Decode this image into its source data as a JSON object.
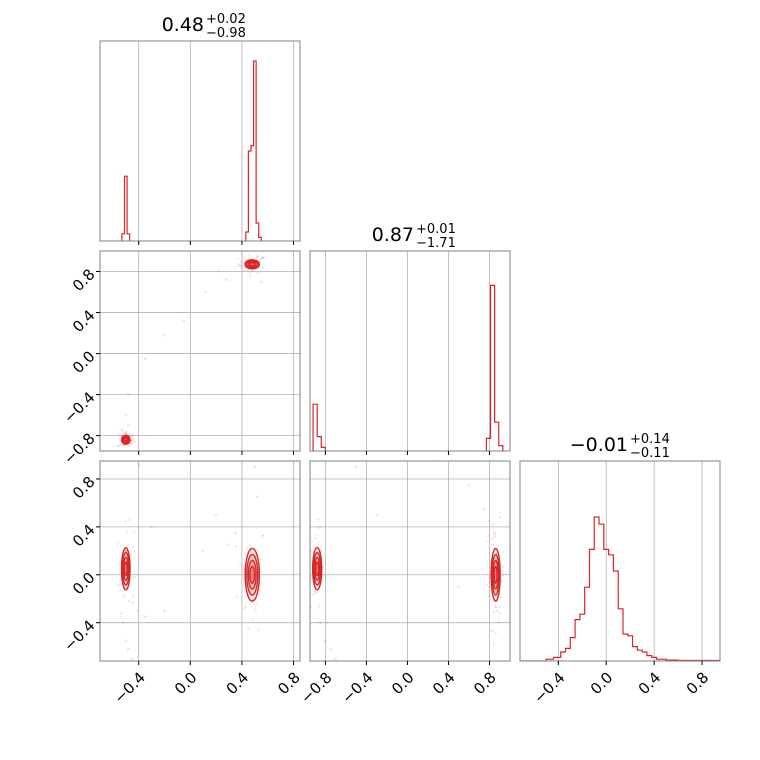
{
  "chart_data": {
    "type": "corner",
    "color": "#d62728",
    "grid": true,
    "parameters": [
      {
        "title_value": "0.48",
        "err_plus": "+0.02",
        "err_minus": "−0.98"
      },
      {
        "title_value": "0.87",
        "err_plus": "+0.01",
        "err_minus": "−1.71"
      },
      {
        "title_value": "−0.01",
        "err_plus": "+0.14",
        "err_minus": "−0.11"
      }
    ],
    "axes": [
      {
        "range": [
          -0.7,
          0.85
        ],
        "ticks": [
          -0.4,
          0.0,
          0.4,
          0.8
        ],
        "tick_labels": [
          "−0.4",
          "0.0",
          "0.4",
          "0.8"
        ]
      },
      {
        "range": [
          -0.95,
          1.0
        ],
        "ticks": [
          -0.8,
          -0.4,
          0.0,
          0.4,
          0.8
        ],
        "tick_labels": [
          "−0.8",
          "−0.4",
          "0.0",
          "0.4",
          "0.8"
        ]
      },
      {
        "range": [
          -0.72,
          0.95
        ],
        "ticks": [
          -0.4,
          0.0,
          0.4,
          0.8
        ],
        "tick_labels": [
          "−0.4",
          "0.0",
          "0.4",
          "0.8"
        ]
      }
    ],
    "histograms": [
      {
        "param": 0,
        "bins": [
          {
            "x0": -0.53,
            "x1": -0.51,
            "h": 0.04
          },
          {
            "x0": -0.51,
            "x1": -0.49,
            "h": 0.36
          },
          {
            "x0": -0.49,
            "x1": -0.47,
            "h": 0.04
          },
          {
            "x0": 0.43,
            "x1": 0.45,
            "h": 0.05
          },
          {
            "x0": 0.45,
            "x1": 0.47,
            "h": 0.5
          },
          {
            "x0": 0.47,
            "x1": 0.49,
            "h": 0.53
          },
          {
            "x0": 0.49,
            "x1": 0.51,
            "h": 1.0
          },
          {
            "x0": 0.51,
            "x1": 0.53,
            "h": 0.1
          },
          {
            "x0": 0.53,
            "x1": 0.55,
            "h": 0.02
          }
        ]
      },
      {
        "param": 1,
        "bins": [
          {
            "x0": -0.92,
            "x1": -0.88,
            "h": 0.26
          },
          {
            "x0": -0.88,
            "x1": -0.84,
            "h": 0.08
          },
          {
            "x0": -0.84,
            "x1": -0.8,
            "h": 0.02
          },
          {
            "x0": 0.77,
            "x1": 0.81,
            "h": 0.07
          },
          {
            "x0": 0.81,
            "x1": 0.85,
            "h": 0.92
          },
          {
            "x0": 0.85,
            "x1": 0.89,
            "h": 0.16
          },
          {
            "x0": 0.89,
            "x1": 0.93,
            "h": 0.03
          }
        ]
      },
      {
        "param": 2,
        "bins": [
          {
            "x0": -0.72,
            "x1": -0.5,
            "h": 0.0
          },
          {
            "x0": -0.5,
            "x1": -0.44,
            "h": 0.01
          },
          {
            "x0": -0.44,
            "x1": -0.38,
            "h": 0.02
          },
          {
            "x0": -0.38,
            "x1": -0.34,
            "h": 0.05
          },
          {
            "x0": -0.34,
            "x1": -0.3,
            "h": 0.07
          },
          {
            "x0": -0.3,
            "x1": -0.26,
            "h": 0.13
          },
          {
            "x0": -0.26,
            "x1": -0.22,
            "h": 0.23
          },
          {
            "x0": -0.22,
            "x1": -0.18,
            "h": 0.26
          },
          {
            "x0": -0.18,
            "x1": -0.14,
            "h": 0.41
          },
          {
            "x0": -0.14,
            "x1": -0.1,
            "h": 0.62
          },
          {
            "x0": -0.1,
            "x1": -0.06,
            "h": 0.8
          },
          {
            "x0": -0.06,
            "x1": -0.02,
            "h": 0.76
          },
          {
            "x0": -0.02,
            "x1": 0.02,
            "h": 0.62
          },
          {
            "x0": 0.02,
            "x1": 0.06,
            "h": 0.59
          },
          {
            "x0": 0.06,
            "x1": 0.1,
            "h": 0.5
          },
          {
            "x0": 0.1,
            "x1": 0.14,
            "h": 0.29
          },
          {
            "x0": 0.14,
            "x1": 0.18,
            "h": 0.15
          },
          {
            "x0": 0.18,
            "x1": 0.22,
            "h": 0.14
          },
          {
            "x0": 0.22,
            "x1": 0.26,
            "h": 0.08
          },
          {
            "x0": 0.26,
            "x1": 0.3,
            "h": 0.06
          },
          {
            "x0": 0.3,
            "x1": 0.34,
            "h": 0.05
          },
          {
            "x0": 0.34,
            "x1": 0.38,
            "h": 0.03
          },
          {
            "x0": 0.38,
            "x1": 0.42,
            "h": 0.02
          },
          {
            "x0": 0.42,
            "x1": 0.5,
            "h": 0.01
          },
          {
            "x0": 0.5,
            "x1": 0.6,
            "h": 0.005
          },
          {
            "x0": 0.6,
            "x1": 0.95,
            "h": 0.003
          }
        ]
      }
    ],
    "pairs": [
      {
        "x_param": 0,
        "y_param": 1,
        "clusters": [
          {
            "x": 0.48,
            "y": 0.87,
            "sx": 0.025,
            "sy": 0.02
          },
          {
            "x": -0.5,
            "y": -0.84,
            "sx": 0.015,
            "sy": 0.02
          }
        ],
        "scatter": [
          [
            0.4,
            0.97
          ],
          [
            0.28,
            0.72
          ],
          [
            0.12,
            0.6
          ],
          [
            -0.05,
            0.32
          ],
          [
            -0.2,
            0.18
          ],
          [
            -0.35,
            -0.05
          ],
          [
            -0.48,
            -0.4
          ],
          [
            -0.5,
            -0.6
          ],
          [
            -0.48,
            -0.7
          ],
          [
            0.22,
            0.8
          ],
          [
            0.55,
            0.7
          ],
          [
            0.52,
            0.95
          ]
        ]
      },
      {
        "x_param": 0,
        "y_param": 2,
        "clusters": [
          {
            "x": 0.48,
            "y": 0.0,
            "sx": 0.025,
            "sy": 0.1
          },
          {
            "x": -0.5,
            "y": 0.05,
            "sx": 0.015,
            "sy": 0.08
          }
        ],
        "scatter": [
          [
            -0.52,
            -0.4
          ],
          [
            -0.5,
            -0.55
          ],
          [
            -0.48,
            -0.62
          ],
          [
            -0.45,
            -0.7
          ],
          [
            -0.4,
            0.92
          ],
          [
            -0.3,
            0.4
          ],
          [
            -0.2,
            -0.3
          ],
          [
            0.1,
            0.2
          ],
          [
            0.2,
            0.5
          ],
          [
            0.35,
            0.35
          ],
          [
            0.45,
            -0.45
          ],
          [
            0.52,
            0.65
          ],
          [
            0.5,
            0.9
          ],
          [
            -0.35,
            -0.35
          ]
        ]
      },
      {
        "x_param": 1,
        "y_param": 2,
        "clusters": [
          {
            "x": 0.86,
            "y": 0.0,
            "sx": 0.02,
            "sy": 0.1
          },
          {
            "x": -0.88,
            "y": 0.05,
            "sx": 0.02,
            "sy": 0.08
          }
        ],
        "scatter": [
          [
            -0.85,
            -0.4
          ],
          [
            -0.8,
            -0.55
          ],
          [
            -0.75,
            -0.62
          ],
          [
            -0.7,
            -0.7
          ],
          [
            -0.5,
            0.9
          ],
          [
            0.3,
            0.95
          ],
          [
            0.6,
            0.75
          ],
          [
            0.75,
            0.55
          ],
          [
            0.8,
            0.45
          ],
          [
            0.85,
            0.35
          ],
          [
            0.88,
            -0.3
          ],
          [
            0.5,
            -0.1
          ],
          [
            -0.3,
            0.5
          ]
        ]
      }
    ]
  }
}
